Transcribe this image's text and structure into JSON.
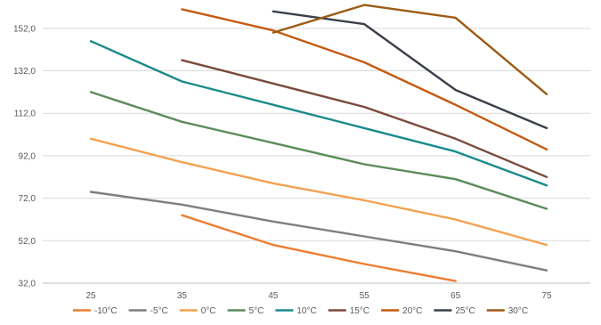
{
  "chart_data": {
    "type": "line",
    "x": [
      25,
      35,
      45,
      55,
      65,
      75
    ],
    "ylim": [
      32,
      162
    ],
    "yticks": [
      32,
      52,
      72,
      92,
      112,
      132,
      152
    ],
    "ytick_labels": [
      "32,0",
      "52,0",
      "72,0",
      "92,0",
      "112,0",
      "132,0",
      "152,0"
    ],
    "xtick_labels": [
      "25",
      "35",
      "45",
      "55",
      "65",
      "75"
    ],
    "grid": "horizontal",
    "legend": "bottom",
    "series": [
      {
        "name": "-10°C",
        "color": "#ed7d31",
        "values": [
          null,
          64,
          50,
          41,
          33,
          null
        ]
      },
      {
        "name": "-5°C",
        "color": "#7f7f7f",
        "values": [
          75,
          69,
          61,
          54,
          47,
          38
        ]
      },
      {
        "name": "0°C",
        "color": "#f4a150",
        "values": [
          100,
          89,
          79,
          71,
          62,
          50
        ]
      },
      {
        "name": "5°C",
        "color": "#5b8c5a",
        "values": [
          122,
          108,
          98,
          88,
          81,
          67
        ]
      },
      {
        "name": "10°C",
        "color": "#1b8a8c",
        "values": [
          146,
          127,
          116,
          105,
          94,
          78
        ]
      },
      {
        "name": "15°C",
        "color": "#7b4a3c",
        "values": [
          null,
          137,
          126,
          115,
          100,
          82
        ]
      },
      {
        "name": "20°C",
        "color": "#c55a11",
        "values": [
          null,
          161,
          151,
          136,
          116,
          95
        ]
      },
      {
        "name": "25°C",
        "color": "#3a3f4b",
        "values": [
          null,
          null,
          160,
          154,
          123,
          105
        ]
      },
      {
        "name": "30°C",
        "color": "#9c5b14",
        "values": [
          null,
          null,
          150,
          163,
          157,
          121
        ]
      }
    ]
  }
}
